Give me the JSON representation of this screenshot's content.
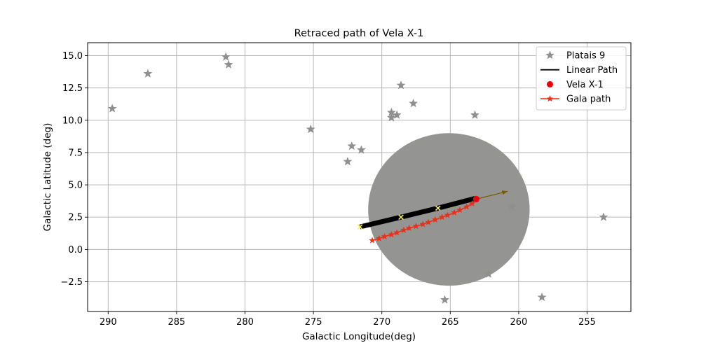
{
  "chart_data": {
    "type": "scatter",
    "title": "Retraced path of Vela X-1",
    "xlabel": "Galactic Longitude(deg)",
    "ylabel": "Galactic Latitude (deg)",
    "xlim": [
      291.5,
      251.8
    ],
    "ylim": [
      -4.8,
      16.0
    ],
    "x_inverted": true,
    "grid": true,
    "xticks": [
      290,
      285,
      280,
      275,
      270,
      265,
      260,
      255
    ],
    "xtick_labels": [
      "290",
      "285",
      "280",
      "275",
      "270",
      "265",
      "260",
      "255"
    ],
    "yticks": [
      -2.5,
      0.0,
      2.5,
      5.0,
      7.5,
      10.0,
      12.5,
      15.0
    ],
    "ytick_labels": [
      "−2.5",
      "0.0",
      "2.5",
      "5.0",
      "7.5",
      "10.0",
      "12.5",
      "15.0"
    ],
    "legend_position": "top-right",
    "series": [
      {
        "name": "Platais 9",
        "kind": "scatter",
        "marker": "star",
        "color": "#8f8f8f",
        "points": [
          [
            289.7,
            10.9
          ],
          [
            287.1,
            13.6
          ],
          [
            281.4,
            14.9
          ],
          [
            281.2,
            14.3
          ],
          [
            275.2,
            9.3
          ],
          [
            272.2,
            8.0
          ],
          [
            271.5,
            7.7
          ],
          [
            272.5,
            6.8
          ],
          [
            269.3,
            10.6
          ],
          [
            269.3,
            10.2
          ],
          [
            268.9,
            10.4
          ],
          [
            268.6,
            12.7
          ],
          [
            267.7,
            11.3
          ],
          [
            263.2,
            10.4
          ],
          [
            260.5,
            3.3
          ],
          [
            262.2,
            -1.9
          ],
          [
            265.4,
            -3.9
          ],
          [
            258.3,
            -3.7
          ],
          [
            253.8,
            2.5
          ]
        ]
      },
      {
        "name": "Linear Path",
        "kind": "line",
        "color": "#000000",
        "points": [
          [
            271.6,
            1.75
          ],
          [
            268.6,
            2.5
          ],
          [
            265.9,
            3.2
          ],
          [
            263.2,
            3.95
          ]
        ]
      },
      {
        "name": "Vela X-1",
        "kind": "point",
        "marker": "circle",
        "color": "#e8000b",
        "points": [
          [
            263.1,
            3.9
          ]
        ]
      },
      {
        "name": "Gala path",
        "kind": "line-with-markers",
        "marker": "star",
        "color": "#e8311a",
        "points": [
          [
            270.7,
            0.7
          ],
          [
            270.2,
            0.85
          ],
          [
            269.8,
            1.0
          ],
          [
            269.3,
            1.15
          ],
          [
            268.9,
            1.3
          ],
          [
            268.4,
            1.5
          ],
          [
            268.0,
            1.65
          ],
          [
            267.5,
            1.8
          ],
          [
            267.0,
            1.95
          ],
          [
            266.6,
            2.1
          ],
          [
            266.1,
            2.3
          ],
          [
            265.6,
            2.5
          ],
          [
            265.2,
            2.65
          ],
          [
            264.7,
            2.85
          ],
          [
            264.3,
            3.05
          ],
          [
            263.8,
            3.3
          ],
          [
            263.4,
            3.55
          ],
          [
            263.1,
            3.9
          ]
        ]
      }
    ],
    "search_region": {
      "kind": "circle",
      "color": "#949592",
      "center": [
        265.1,
        3.1
      ],
      "radius_deg": 5.9
    },
    "markers_x": {
      "color": "#f6f05a",
      "points": [
        [
          271.6,
          1.75
        ],
        [
          268.6,
          2.5
        ],
        [
          265.9,
          3.2
        ]
      ]
    },
    "velocity_arrow": {
      "color": "#7a5a00",
      "from": [
        263.1,
        3.9
      ],
      "to": [
        260.8,
        4.5
      ]
    }
  }
}
